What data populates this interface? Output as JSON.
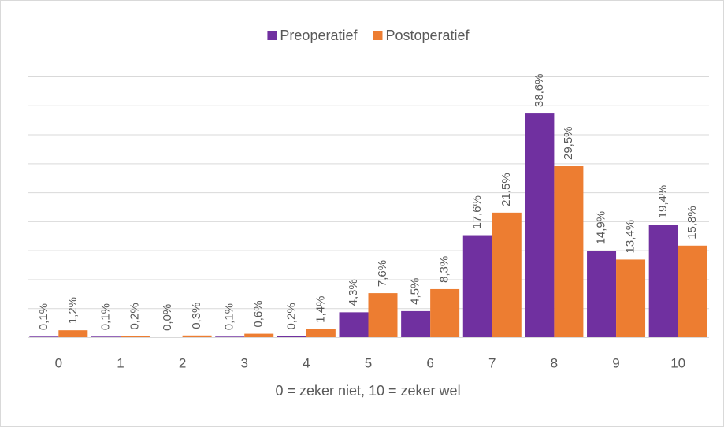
{
  "chart_data": {
    "type": "bar",
    "x_label": "0 = zeker niet, 10 = zeker wel",
    "categories": [
      "0",
      "1",
      "2",
      "3",
      "4",
      "5",
      "6",
      "7",
      "8",
      "9",
      "10"
    ],
    "series": [
      {
        "name": "Preoperatief",
        "color": "#7030a0",
        "values": [
          0.1,
          0.1,
          0.0,
          0.1,
          0.2,
          4.3,
          4.5,
          17.6,
          38.6,
          14.9,
          19.4
        ],
        "value_labels": [
          "0,1%",
          "0,1%",
          "0,0%",
          "0,1%",
          "0,2%",
          "4,3%",
          "4,5%",
          "17,6%",
          "38,6%",
          "14,9%",
          "19,4%"
        ]
      },
      {
        "name": "Postoperatief",
        "color": "#ed7d31",
        "values": [
          1.2,
          0.2,
          0.3,
          0.6,
          1.4,
          7.6,
          8.3,
          21.5,
          29.5,
          13.4,
          15.8
        ],
        "value_labels": [
          "1,2%",
          "0,2%",
          "0,3%",
          "0,6%",
          "1,4%",
          "7,6%",
          "8,3%",
          "21,5%",
          "29,5%",
          "13,4%",
          "15,8%"
        ]
      }
    ],
    "ylim": [
      0,
      45
    ],
    "yticks": [
      0,
      5,
      10,
      15,
      20,
      25,
      30,
      35,
      40,
      45
    ],
    "grid": true,
    "legend": "top"
  }
}
